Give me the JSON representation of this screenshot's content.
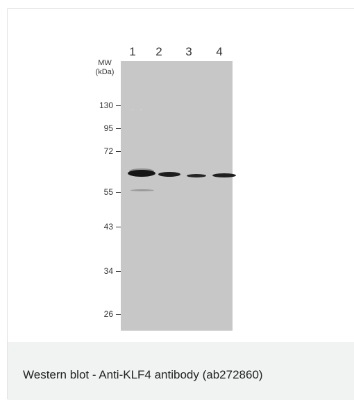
{
  "figure": {
    "mw_label": "MW",
    "mw_unit": "(kDa)",
    "lanes": [
      "1",
      "2",
      "3",
      "4"
    ],
    "markers": [
      "130",
      "95",
      "72",
      "55",
      "43",
      "34",
      "26"
    ]
  },
  "caption": "Western blot - Anti-KLF4 antibody (ab272860)"
}
